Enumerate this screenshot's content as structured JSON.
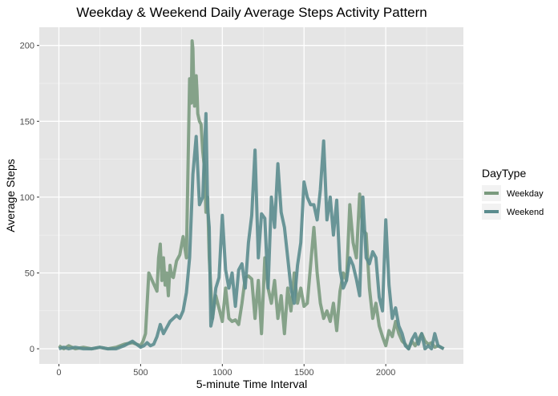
{
  "chart_data": {
    "type": "line",
    "title": "Weekday & Weekend Daily Average Steps Activity Pattern",
    "xlabel": "5-minute Time Interval",
    "ylabel": "Average Steps",
    "xlim": [
      -120,
      2475
    ],
    "ylim": [
      -10,
      212
    ],
    "xticks": [
      0,
      500,
      1000,
      1500,
      2000
    ],
    "yticks": [
      0,
      50,
      100,
      150,
      200
    ],
    "grid": true,
    "legend": {
      "title": "DayType",
      "position": "right"
    },
    "series": [
      {
        "name": "Weekday",
        "color": "#7a9a7e",
        "x": [
          0,
          30,
          60,
          100,
          150,
          200,
          250,
          300,
          350,
          400,
          450,
          500,
          515,
          530,
          550,
          600,
          610,
          620,
          630,
          640,
          650,
          660,
          670,
          680,
          690,
          700,
          720,
          740,
          760,
          780,
          800,
          810,
          815,
          820,
          825,
          830,
          835,
          840,
          845,
          850,
          860,
          870,
          880,
          890,
          900,
          910,
          920,
          930,
          940,
          950,
          960,
          1000,
          1020,
          1040,
          1060,
          1080,
          1100,
          1120,
          1140,
          1160,
          1180,
          1200,
          1220,
          1240,
          1260,
          1280,
          1300,
          1320,
          1340,
          1360,
          1380,
          1400,
          1420,
          1440,
          1460,
          1480,
          1500,
          1520,
          1540,
          1560,
          1580,
          1600,
          1620,
          1640,
          1660,
          1680,
          1700,
          1720,
          1740,
          1760,
          1780,
          1800,
          1820,
          1840,
          1860,
          1880,
          1900,
          1920,
          1940,
          1960,
          1980,
          2000,
          2020,
          2040,
          2060,
          2080,
          2100,
          2120,
          2140,
          2160,
          2180,
          2200,
          2220,
          2240,
          2260,
          2280,
          2300,
          2320,
          2355
        ],
        "y": [
          2,
          0,
          2,
          0,
          1,
          0,
          1,
          0,
          1,
          3,
          4,
          2,
          5,
          10,
          50,
          38,
          60,
          69,
          45,
          60,
          42,
          50,
          35,
          55,
          48,
          47,
          58,
          62,
          74,
          60,
          178,
          162,
          203,
          198,
          175,
          160,
          165,
          180,
          170,
          155,
          150,
          148,
          130,
          120,
          90,
          100,
          60,
          40,
          20,
          28,
          35,
          18,
          40,
          20,
          18,
          19,
          16,
          30,
          47,
          48,
          46,
          20,
          45,
          10,
          60,
          40,
          30,
          45,
          20,
          35,
          10,
          40,
          25,
          50,
          30,
          40,
          28,
          30,
          55,
          80,
          50,
          30,
          20,
          25,
          18,
          30,
          12,
          38,
          50,
          45,
          95,
          70,
          60,
          102,
          78,
          76,
          40,
          20,
          30,
          15,
          8,
          2,
          12,
          8,
          18,
          10,
          5,
          3,
          0,
          5,
          2,
          6,
          10,
          5,
          3,
          4,
          1,
          2,
          0
        ]
      },
      {
        "name": "Weekend",
        "color": "#5b8c8e",
        "x": [
          0,
          30,
          60,
          100,
          150,
          200,
          250,
          300,
          350,
          400,
          450,
          500,
          520,
          540,
          560,
          580,
          600,
          620,
          640,
          660,
          680,
          700,
          720,
          740,
          760,
          780,
          800,
          820,
          840,
          860,
          880,
          900,
          910,
          920,
          930,
          940,
          960,
          980,
          1000,
          1020,
          1040,
          1060,
          1080,
          1100,
          1120,
          1140,
          1160,
          1180,
          1200,
          1220,
          1240,
          1260,
          1280,
          1300,
          1320,
          1340,
          1360,
          1380,
          1400,
          1420,
          1440,
          1460,
          1480,
          1500,
          1520,
          1540,
          1560,
          1580,
          1600,
          1620,
          1640,
          1660,
          1680,
          1700,
          1720,
          1740,
          1760,
          1780,
          1800,
          1820,
          1840,
          1860,
          1880,
          1900,
          1920,
          1940,
          1960,
          1980,
          2000,
          2020,
          2040,
          2060,
          2080,
          2100,
          2120,
          2140,
          2160,
          2180,
          2200,
          2220,
          2240,
          2260,
          2280,
          2300,
          2320,
          2355
        ],
        "y": [
          0,
          1,
          0,
          1,
          0,
          0,
          1,
          0,
          0,
          2,
          5,
          1,
          2,
          4,
          2,
          3,
          8,
          16,
          10,
          14,
          18,
          20,
          22,
          20,
          25,
          37,
          60,
          115,
          140,
          95,
          100,
          155,
          93,
          80,
          15,
          20,
          40,
          47,
          88,
          52,
          40,
          50,
          28,
          52,
          56,
          40,
          70,
          88,
          131,
          60,
          89,
          86,
          40,
          100,
          80,
          122,
          90,
          80,
          60,
          40,
          30,
          55,
          70,
          110,
          100,
          95,
          95,
          85,
          105,
          137,
          85,
          100,
          75,
          98,
          52,
          40,
          45,
          60,
          55,
          46,
          35,
          100,
          60,
          56,
          64,
          60,
          34,
          25,
          85,
          42,
          20,
          27,
          15,
          10,
          2,
          0,
          6,
          10,
          3,
          10,
          0,
          2,
          0,
          10,
          2,
          0
        ]
      }
    ]
  }
}
